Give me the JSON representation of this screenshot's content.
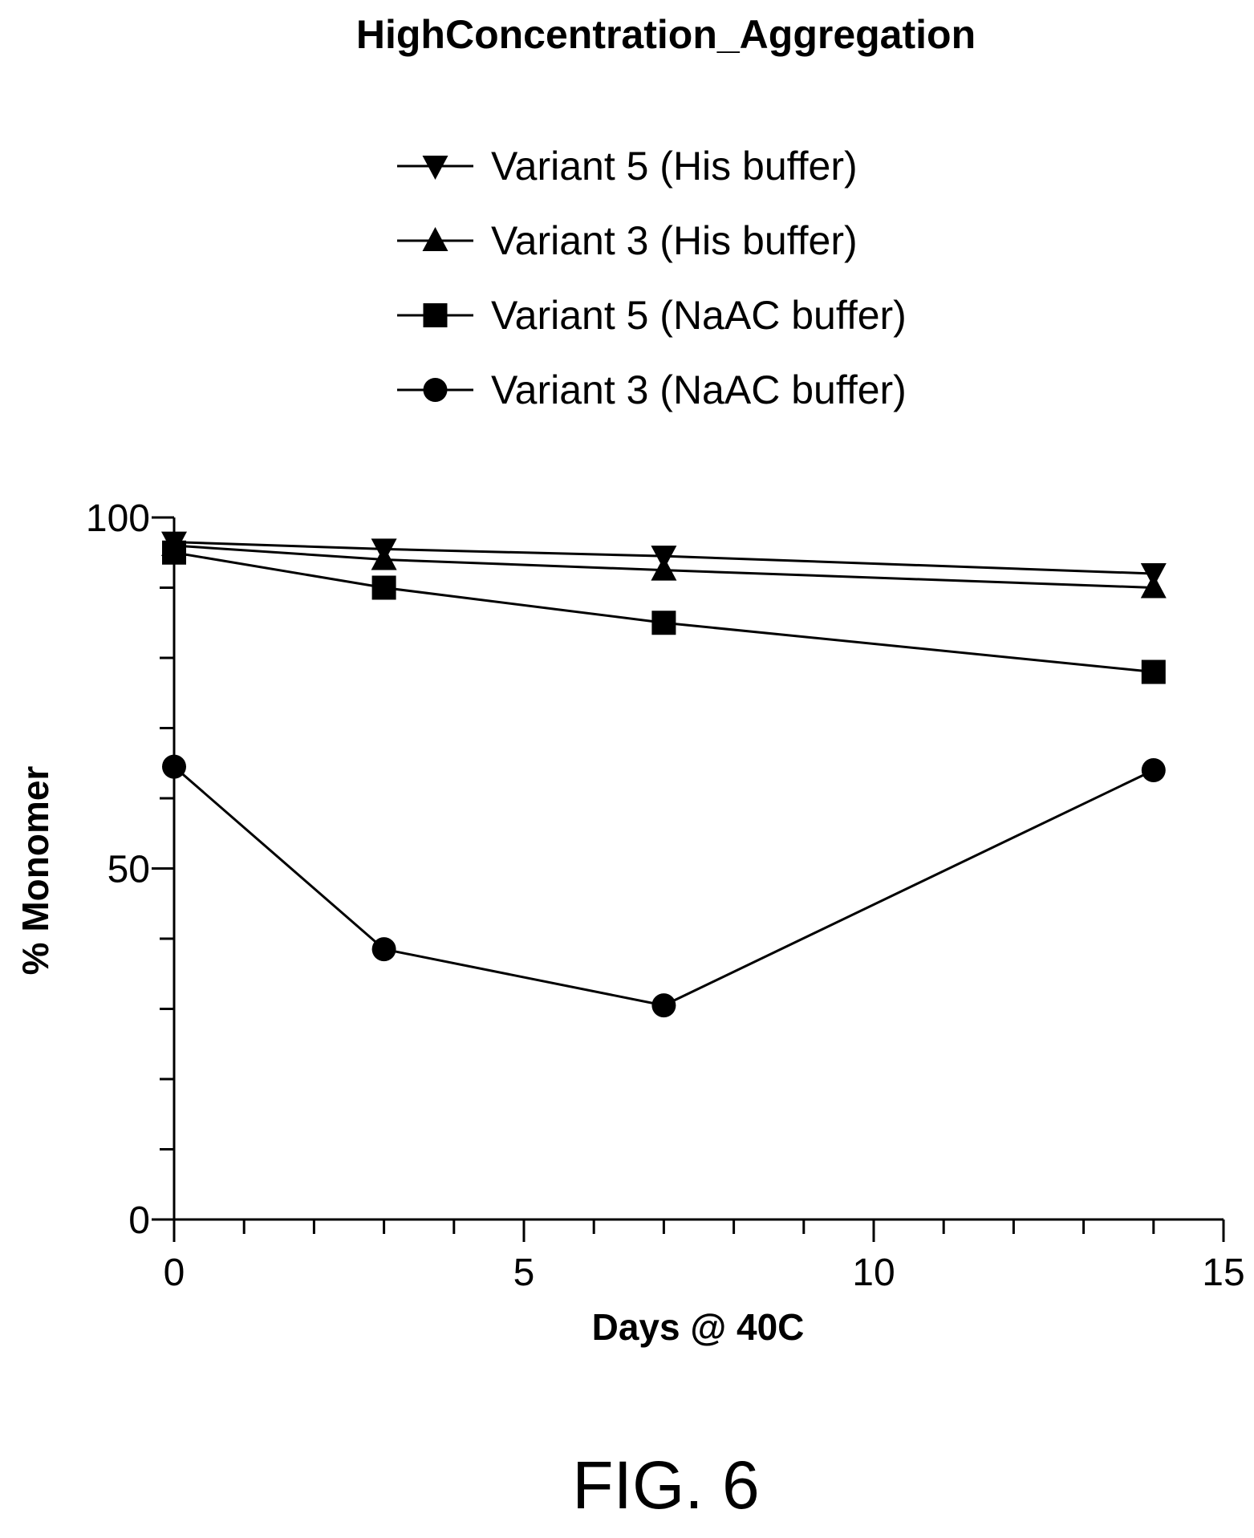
{
  "chart_data": {
    "type": "line",
    "title": "HighConcentration_Aggregation",
    "xlabel": "Days @ 40C",
    "ylabel": "% Monomer",
    "xlim": [
      0,
      15
    ],
    "ylim": [
      0,
      100
    ],
    "xticks": [
      0,
      5,
      10,
      15
    ],
    "yticks": [
      0,
      50,
      100
    ],
    "grid": false,
    "legend_position": "top-center",
    "series": [
      {
        "name": "Variant 5 (His buffer)",
        "marker": "triangle-down",
        "x": [
          0,
          3,
          7,
          14
        ],
        "y": [
          96.5,
          95.5,
          94.5,
          92
        ]
      },
      {
        "name": "Variant 3 (His buffer)",
        "marker": "triangle-up",
        "x": [
          0,
          3,
          7,
          14
        ],
        "y": [
          96,
          94,
          92.5,
          90
        ]
      },
      {
        "name": "Variant 5 (NaAC buffer)",
        "marker": "square",
        "x": [
          0,
          3,
          7,
          14
        ],
        "y": [
          95,
          90,
          85,
          78
        ]
      },
      {
        "name": "Variant 3 (NaAC buffer)",
        "marker": "circle",
        "x": [
          0,
          3,
          7,
          14
        ],
        "y": [
          64.5,
          38.5,
          30.5,
          64
        ]
      }
    ],
    "figure_label": "FIG. 6"
  }
}
